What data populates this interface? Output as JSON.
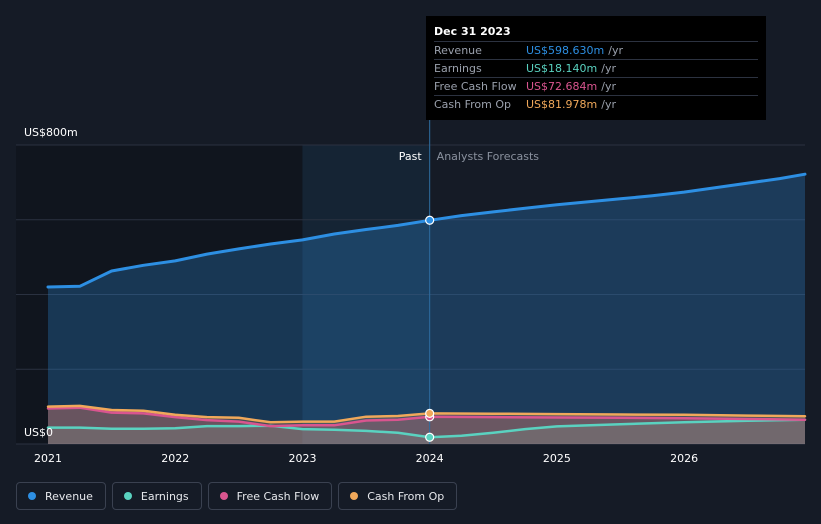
{
  "chart_data": {
    "type": "area",
    "title": "",
    "y_unit_label": "US$800m",
    "y_zero_label": "US$0",
    "ylim": [
      0,
      800
    ],
    "xlim": [
      2021.0,
      2026.95
    ],
    "divider_x": 2024.0,
    "highlight_start": 2023.0,
    "x_ticks": [
      "2021",
      "2022",
      "2023",
      "2024",
      "2025",
      "2026"
    ],
    "x_tick_values": [
      2021,
      2022,
      2023,
      2024,
      2025,
      2026
    ],
    "region_labels": {
      "past": "Past",
      "forecast": "Analysts Forecasts"
    },
    "series": [
      {
        "name": "Revenue",
        "color": "#2d8fe3",
        "x": [
          2021.0,
          2021.25,
          2021.5,
          2021.75,
          2022.0,
          2022.25,
          2022.5,
          2022.75,
          2023.0,
          2023.25,
          2023.5,
          2023.75,
          2024.0,
          2024.25,
          2024.5,
          2024.75,
          2025.0,
          2025.25,
          2025.5,
          2025.75,
          2026.0,
          2026.25,
          2026.5,
          2026.75,
          2026.95
        ],
        "values": [
          420,
          422,
          463,
          478,
          490,
          508,
          522,
          535,
          546,
          562,
          574,
          585,
          598.63,
          611,
          621,
          631,
          640,
          648,
          656,
          664,
          674,
          686,
          698,
          710,
          722
        ]
      },
      {
        "name": "Earnings",
        "color": "#5ad2c0",
        "x": [
          2021.0,
          2021.25,
          2021.5,
          2021.75,
          2022.0,
          2022.25,
          2022.5,
          2022.75,
          2023.0,
          2023.25,
          2023.5,
          2023.75,
          2024.0,
          2024.25,
          2024.5,
          2024.75,
          2025.0,
          2025.5,
          2026.0,
          2026.5,
          2026.95
        ],
        "values": [
          44,
          44,
          41,
          41,
          42,
          48,
          48,
          49,
          40,
          38,
          35,
          30,
          18.14,
          22,
          30,
          40,
          47,
          53,
          58,
          62,
          65
        ]
      },
      {
        "name": "Free Cash Flow",
        "color": "#d9558f",
        "x": [
          2021.0,
          2021.25,
          2021.5,
          2021.75,
          2022.0,
          2022.25,
          2022.5,
          2022.75,
          2023.0,
          2023.25,
          2023.5,
          2023.75,
          2024.0,
          2024.5,
          2025.0,
          2025.5,
          2026.0,
          2026.5,
          2026.95
        ],
        "values": [
          95,
          97,
          84,
          82,
          72,
          64,
          60,
          48,
          50,
          50,
          63,
          65,
          72.684,
          72,
          71,
          70,
          69,
          67,
          65
        ]
      },
      {
        "name": "Cash From Op",
        "color": "#f0a85a",
        "x": [
          2021.0,
          2021.25,
          2021.5,
          2021.75,
          2022.0,
          2022.25,
          2022.5,
          2022.75,
          2023.0,
          2023.25,
          2023.5,
          2023.75,
          2024.0,
          2024.5,
          2025.0,
          2025.5,
          2026.0,
          2026.5,
          2026.95
        ],
        "values": [
          100,
          102,
          91,
          89,
          78,
          72,
          70,
          58,
          60,
          60,
          73,
          75,
          81.978,
          81,
          80,
          79,
          78,
          76,
          74
        ]
      }
    ]
  },
  "tooltip": {
    "date": "Dec 31 2023",
    "unit": "/yr",
    "rows": [
      {
        "label": "Revenue",
        "value": "US$598.630m",
        "color": "#2d8fe3"
      },
      {
        "label": "Earnings",
        "value": "US$18.140m",
        "color": "#5ad2c0"
      },
      {
        "label": "Free Cash Flow",
        "value": "US$72.684m",
        "color": "#d9558f"
      },
      {
        "label": "Cash From Op",
        "value": "US$81.978m",
        "color": "#f0a85a"
      }
    ]
  },
  "legend": [
    {
      "label": "Revenue",
      "color": "#2d8fe3"
    },
    {
      "label": "Earnings",
      "color": "#5ad2c0"
    },
    {
      "label": "Free Cash Flow",
      "color": "#d9558f"
    },
    {
      "label": "Cash From Op",
      "color": "#f0a85a"
    }
  ]
}
